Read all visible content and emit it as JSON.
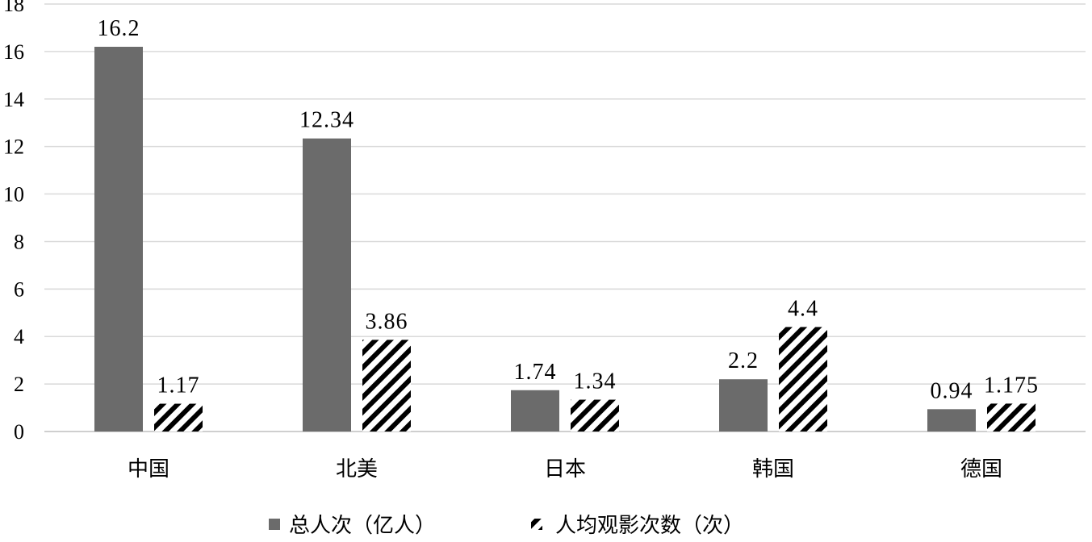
{
  "chart_data": {
    "type": "bar",
    "categories": [
      "中国",
      "北美",
      "日本",
      "韩国",
      "德国"
    ],
    "series": [
      {
        "name": "总人次（亿人）",
        "values": [
          16.2,
          12.34,
          1.74,
          2.2,
          0.94
        ],
        "labels": [
          "16.2",
          "12.34",
          "1.74",
          "2.2",
          "0.94"
        ],
        "color": "#6b6b6b",
        "pattern": "solid"
      },
      {
        "name": "人均观影次数（次）",
        "values": [
          1.17,
          3.86,
          1.34,
          4.4,
          1.175
        ],
        "labels": [
          "1.17",
          "3.86",
          "1.34",
          "4.4",
          "1.175"
        ],
        "color": "#000000",
        "pattern": "diagonal-hatch"
      }
    ],
    "ylim": [
      0,
      18
    ],
    "yticks": [
      0,
      2,
      4,
      6,
      8,
      10,
      12,
      14,
      16,
      18
    ],
    "grid": true,
    "legend": "bottom"
  }
}
